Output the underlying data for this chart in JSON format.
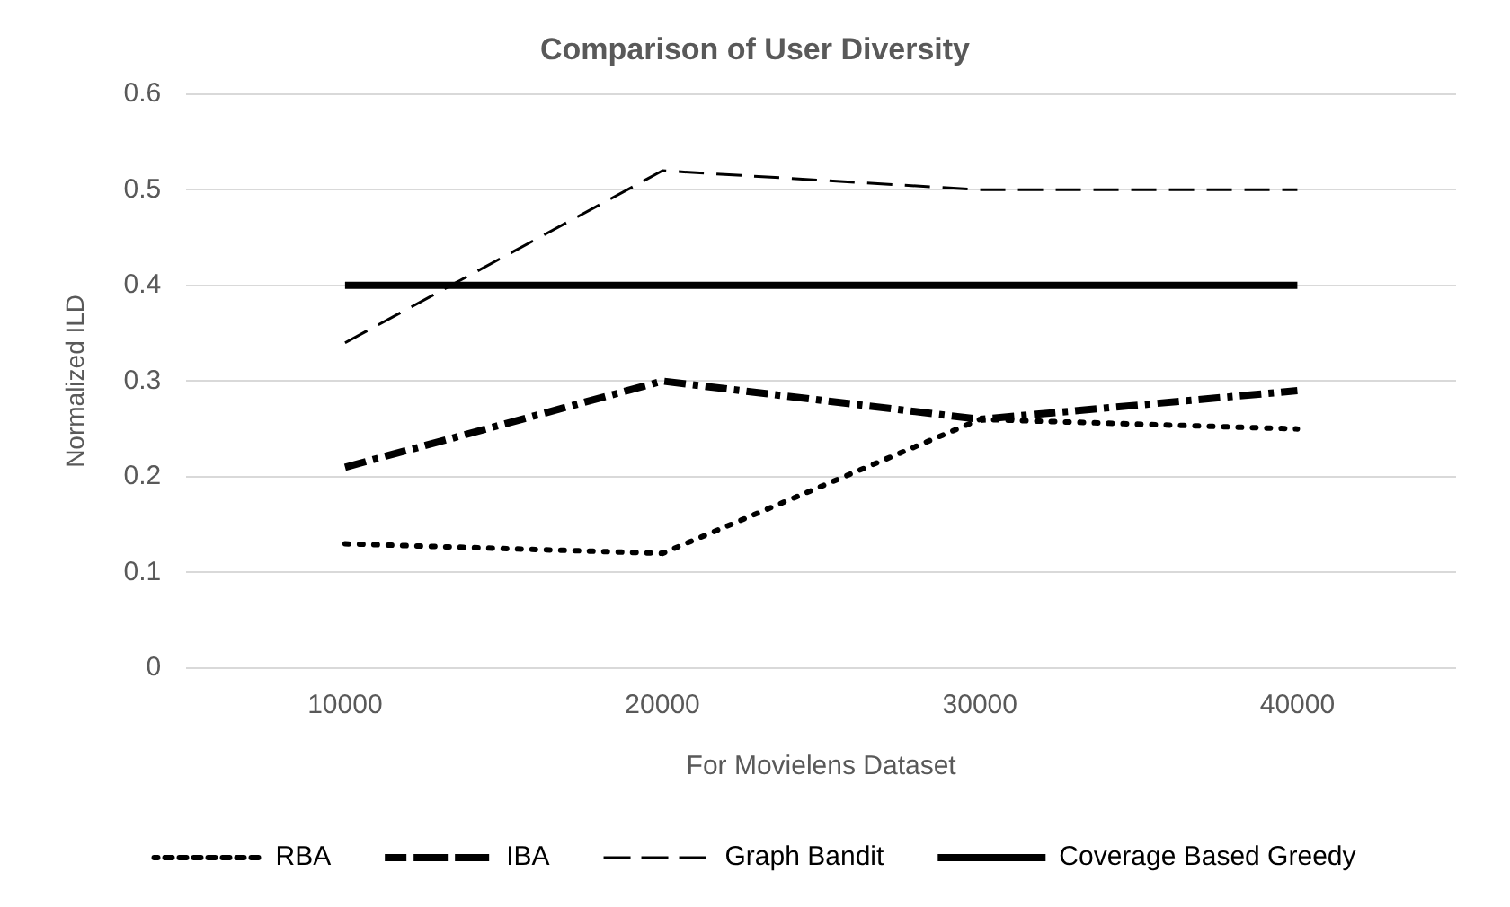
{
  "chart_data": {
    "type": "line",
    "title": "Comparison of User Diversity",
    "xlabel": "For Movielens Dataset",
    "ylabel": "Normalized ILD",
    "categories": [
      "10000",
      "20000",
      "30000",
      "40000"
    ],
    "ylim": [
      0,
      0.6
    ],
    "yticks": [
      0,
      0.1,
      0.2,
      0.3,
      0.4,
      0.5,
      0.6
    ],
    "grid": "y",
    "legend": "bottom",
    "marker": "none",
    "series": [
      {
        "name": "RBA",
        "color": "#000000",
        "line_style": "dotted",
        "values": [
          0.13,
          0.12,
          0.26,
          0.25
        ]
      },
      {
        "name": "IBA",
        "color": "#000000",
        "line_style": "dashed",
        "values": [
          0.21,
          0.3,
          0.26,
          0.29
        ]
      },
      {
        "name": "Graph Bandit",
        "color": "#000000",
        "line_style": "dashed",
        "values": [
          0.34,
          0.52,
          0.5,
          0.5
        ]
      },
      {
        "name": "Coverage Based Greedy",
        "color": "#000000",
        "line_style": "solid",
        "values": [
          0.4,
          0.4,
          0.4,
          0.4
        ]
      }
    ]
  }
}
